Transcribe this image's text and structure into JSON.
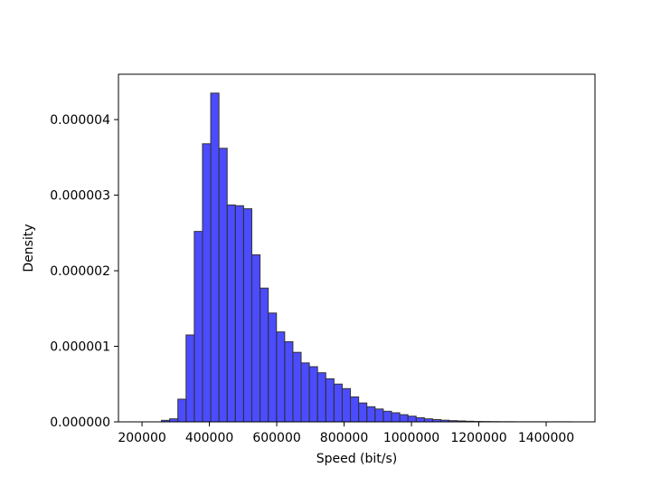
{
  "chart_data": {
    "type": "bar",
    "title": "",
    "xlabel": "Speed (bit/s)",
    "ylabel": "Density",
    "xlim": [
      130000,
      1545000
    ],
    "ylim": [
      0,
      4.6e-06
    ],
    "xticks": [
      200000,
      400000,
      600000,
      800000,
      1000000,
      1200000,
      1400000
    ],
    "xtick_labels": [
      "200000",
      "400000",
      "600000",
      "800000",
      "1000000",
      "1200000",
      "1400000"
    ],
    "yticks": [
      0,
      1e-06,
      2e-06,
      3e-06,
      4e-06
    ],
    "ytick_labels": [
      "0.000000",
      "0.000001",
      "0.000002",
      "0.000003",
      "0.000004"
    ],
    "grid": false,
    "bar_color": "#0000ff",
    "bar_edge_color": "#333333",
    "bin_start": 160000,
    "bin_width": 24400,
    "values": [
      0,
      0,
      0,
      0,
      2e-08,
      4e-08,
      3e-07,
      1.15e-06,
      2.52e-06,
      3.68e-06,
      4.35e-06,
      3.62e-06,
      2.87e-06,
      2.86e-06,
      2.82e-06,
      2.21e-06,
      1.77e-06,
      1.44e-06,
      1.19e-06,
      1.06e-06,
      9.2e-07,
      7.8e-07,
      7.3e-07,
      6.5e-07,
      5.7e-07,
      5e-07,
      4.4e-07,
      3.3e-07,
      2.5e-07,
      2e-07,
      1.7e-07,
      1.4e-07,
      1.2e-07,
      9.5e-08,
      7.5e-08,
      5.5e-08,
      4e-08,
      3e-08,
      2.2e-08,
      1.6e-08,
      1.2e-08,
      8e-09,
      5e-09,
      4e-09,
      3e-09,
      2e-09,
      2e-09,
      1e-09,
      1e-09,
      1e-09,
      1e-09,
      1e-09,
      1e-09,
      1e-09
    ]
  }
}
